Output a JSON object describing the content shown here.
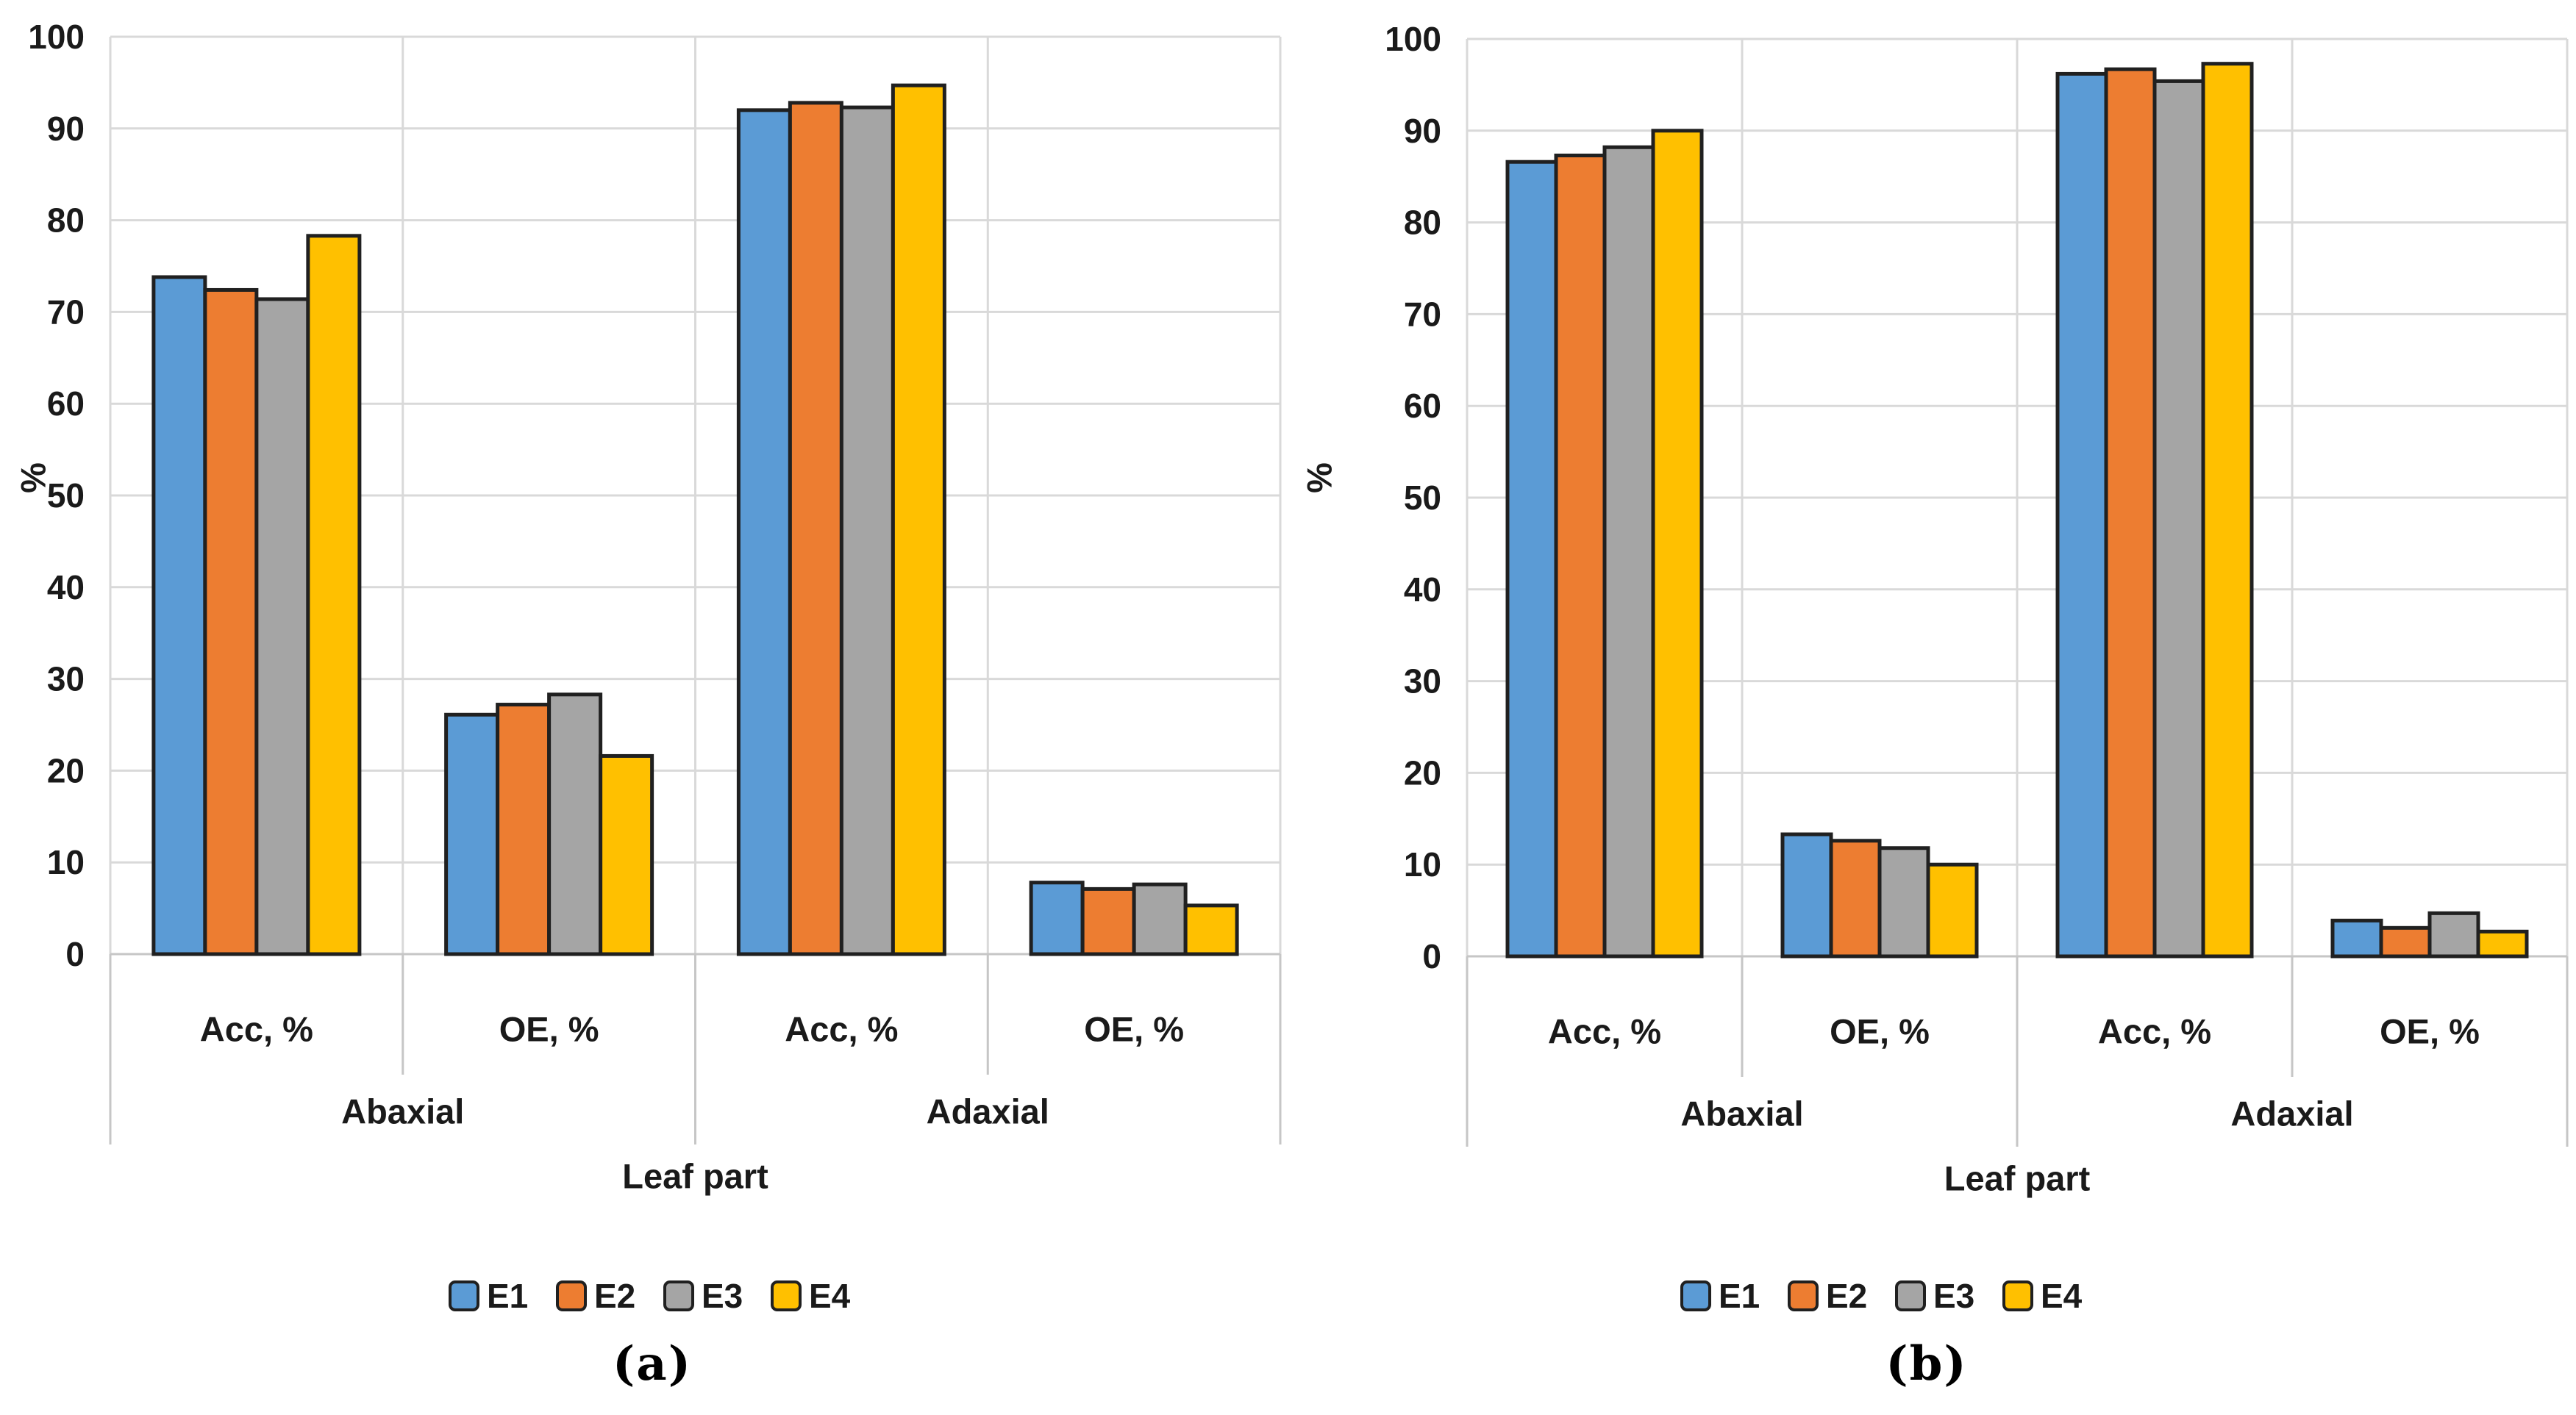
{
  "figure": {
    "type": "double-bar-chart-figure",
    "background": "#ffffff"
  },
  "colors": {
    "series": [
      "#5B9BD5",
      "#ED7D31",
      "#A5A5A5",
      "#FFC000"
    ],
    "bar_border": "#202020",
    "gridline": "#D9D9D9",
    "axis_line": "#C6C6C6",
    "text": "#1A1A1A"
  },
  "chart_data": [
    {
      "id": "a",
      "type": "bar",
      "caption": "(a)",
      "ylabel": "%",
      "xlabel": "Leaf part",
      "ylim": [
        0,
        100
      ],
      "yticks": [
        0,
        10,
        20,
        30,
        40,
        50,
        60,
        70,
        80,
        90,
        100
      ],
      "grid": true,
      "legend_position": "bottom",
      "group_labels": [
        "Abaxial",
        "Adaxial"
      ],
      "categories": [
        "Acc, %",
        "OE, %",
        "Acc, %",
        "OE, %"
      ],
      "series": [
        {
          "name": "E1",
          "values": [
            73.8,
            26.1,
            92.0,
            7.8
          ]
        },
        {
          "name": "E2",
          "values": [
            72.4,
            27.2,
            92.8,
            7.1
          ]
        },
        {
          "name": "E3",
          "values": [
            71.4,
            28.3,
            92.3,
            7.6
          ]
        },
        {
          "name": "E4",
          "values": [
            78.3,
            21.6,
            94.7,
            5.3
          ]
        }
      ]
    },
    {
      "id": "b",
      "type": "bar",
      "caption": "(b)",
      "ylabel": "%",
      "xlabel": "Leaf part",
      "ylim": [
        0,
        100
      ],
      "yticks": [
        0,
        10,
        20,
        30,
        40,
        50,
        60,
        70,
        80,
        90,
        100
      ],
      "grid": true,
      "legend_position": "bottom",
      "group_labels": [
        "Abaxial",
        "Adaxial"
      ],
      "categories": [
        "Acc, %",
        "OE, %",
        "Acc, %",
        "OE, %"
      ],
      "series": [
        {
          "name": "E1",
          "values": [
            86.6,
            13.3,
            96.2,
            3.9
          ]
        },
        {
          "name": "E2",
          "values": [
            87.3,
            12.6,
            96.7,
            3.1
          ]
        },
        {
          "name": "E3",
          "values": [
            88.2,
            11.8,
            95.4,
            4.7
          ]
        },
        {
          "name": "E4",
          "values": [
            90.0,
            10.0,
            97.3,
            2.7
          ]
        }
      ]
    }
  ]
}
